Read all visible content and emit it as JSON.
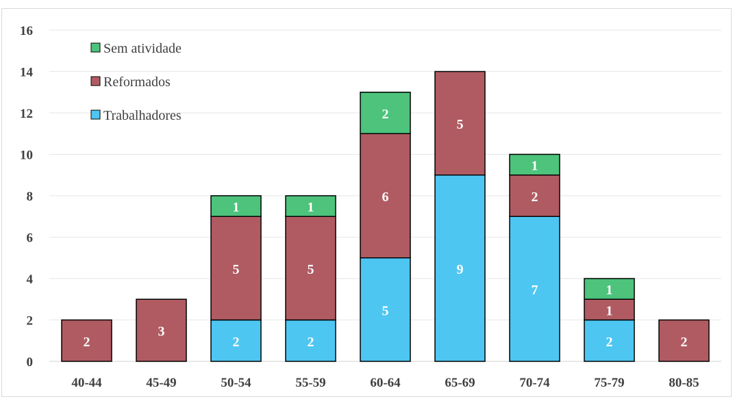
{
  "chart_data": {
    "type": "bar",
    "stacked": true,
    "categories": [
      "40-44",
      "45-49",
      "50-54",
      "55-59",
      "60-64",
      "65-69",
      "70-74",
      "75-79",
      "80-85"
    ],
    "series": [
      {
        "name": "Trabalhadores",
        "color": "#4ec6f2",
        "values": [
          0,
          0,
          2,
          2,
          5,
          9,
          7,
          2,
          0
        ]
      },
      {
        "name": "Reformados",
        "color": "#b05b62",
        "values": [
          2,
          3,
          5,
          5,
          6,
          5,
          2,
          1,
          2
        ]
      },
      {
        "name": "Sem atividade",
        "color": "#4dc37c",
        "values": [
          0,
          0,
          1,
          1,
          2,
          0,
          1,
          1,
          0
        ]
      }
    ],
    "legend_order": [
      "Sem atividade",
      "Reformados",
      "Trabalhadores"
    ],
    "legend_position": "top-left",
    "ylim": [
      0,
      16
    ],
    "yticks": [
      0,
      2,
      4,
      6,
      8,
      10,
      12,
      14,
      16
    ],
    "grid": true,
    "title": "",
    "xlabel": "",
    "ylabel": ""
  }
}
